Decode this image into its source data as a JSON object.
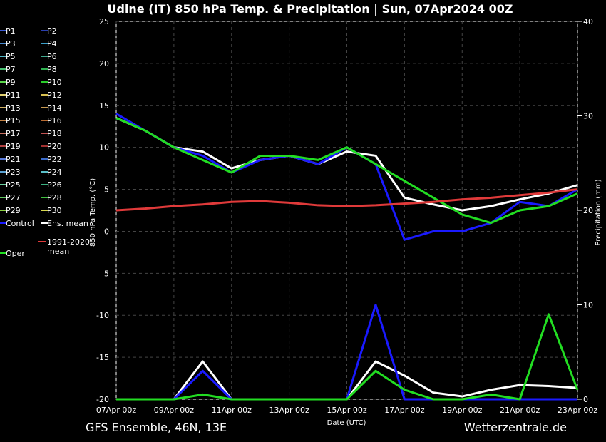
{
  "chart_data": {
    "type": "line",
    "title": "Udine  (IT)  850 hPa Temp. & Precipitation | Sun, 07Apr2024 00Z",
    "xlabel": "Date (UTC)",
    "ylabel": "850 hPa Temp. (°C)",
    "y2label": "Precipitation (mm)",
    "ylim": [
      -20,
      25
    ],
    "y2lim": [
      0,
      40
    ],
    "yticks": [
      "25",
      "20",
      "15",
      "10",
      "5",
      "0",
      "-5",
      "-10",
      "-15",
      "-20"
    ],
    "y2ticks": [
      "40",
      "30",
      "20",
      "10",
      "0"
    ],
    "xticks": [
      "07Apr 00z",
      "09Apr 00z",
      "11Apr 00z",
      "13Apr 00z",
      "15Apr 00z",
      "17Apr 00z",
      "19Apr 00z",
      "21Apr 00z",
      "23Apr 00z"
    ],
    "footer_left": "GFS Ensemble, 46N, 13E",
    "footer_right": "Wetterzentrale.de",
    "grid": true,
    "legend_position": "left",
    "legend": [
      {
        "label": "P1",
        "color": "#3b5bd6"
      },
      {
        "label": "P2",
        "color": "#2a3fb0"
      },
      {
        "label": "P3",
        "color": "#4a8ad0"
      },
      {
        "label": "P4",
        "color": "#3a9ec8"
      },
      {
        "label": "P5",
        "color": "#4fb6c4"
      },
      {
        "label": "P6",
        "color": "#3fa88c"
      },
      {
        "label": "P7",
        "color": "#48c070"
      },
      {
        "label": "P8",
        "color": "#2fb050"
      },
      {
        "label": "P9",
        "color": "#5ad44a"
      },
      {
        "label": "P10",
        "color": "#2acd2a"
      },
      {
        "label": "P11",
        "color": "#e0d070"
      },
      {
        "label": "P12",
        "color": "#d8c050"
      },
      {
        "label": "P13",
        "color": "#d0b060"
      },
      {
        "label": "P14",
        "color": "#c89a50"
      },
      {
        "label": "P15",
        "color": "#c48040"
      },
      {
        "label": "P16",
        "color": "#b86a30"
      },
      {
        "label": "P17",
        "color": "#c87060"
      },
      {
        "label": "P18",
        "color": "#c05050"
      },
      {
        "label": "P19",
        "color": "#b04040"
      },
      {
        "label": "P20",
        "color": "#a03030"
      },
      {
        "label": "P21",
        "color": "#5a7ad8"
      },
      {
        "label": "P22",
        "color": "#3a6ac8"
      },
      {
        "label": "P23",
        "color": "#5aa0d0"
      },
      {
        "label": "P24",
        "color": "#5ac0c8"
      },
      {
        "label": "P25",
        "color": "#6ad0a0"
      },
      {
        "label": "P26",
        "color": "#3ab080"
      },
      {
        "label": "P27",
        "color": "#60c860"
      },
      {
        "label": "P28",
        "color": "#40c040"
      },
      {
        "label": "P29",
        "color": "#8ad040"
      },
      {
        "label": "P30",
        "color": "#d8d850"
      },
      {
        "label": "Control",
        "color": "#1a1aff"
      },
      {
        "label": "Ens. mean",
        "color": "#ffffff"
      },
      {
        "label": "1991-2020 mean",
        "color": "#e03a3a"
      },
      {
        "label": "Oper",
        "color": "#22dd22"
      }
    ],
    "x_days": [
      0,
      1,
      2,
      3,
      4,
      5,
      6,
      7,
      8,
      9,
      10,
      11,
      12,
      13,
      14,
      15,
      16
    ],
    "series": [
      {
        "name": "Ens. mean",
        "role": "temp",
        "color": "#ffffff",
        "values": [
          13.5,
          12,
          10,
          9.5,
          7.5,
          8.5,
          9,
          8,
          9.5,
          9,
          4,
          3.2,
          2.5,
          3,
          3.8,
          4.5,
          5.5
        ]
      },
      {
        "name": "Control",
        "role": "temp",
        "color": "#1a1aff",
        "values": [
          14,
          12,
          10,
          9,
          7,
          8.5,
          9,
          8,
          10,
          8,
          -1,
          0,
          0,
          1,
          3.5,
          3,
          5
        ]
      },
      {
        "name": "Oper",
        "role": "temp",
        "color": "#22dd22",
        "values": [
          13.5,
          12,
          10,
          8.5,
          7,
          9,
          9,
          8.5,
          10,
          8,
          6,
          4,
          2,
          1,
          2.5,
          3,
          4.5
        ]
      },
      {
        "name": "1991-2020 mean",
        "role": "temp",
        "color": "#e03a3a",
        "values": [
          2.5,
          2.7,
          3,
          3.2,
          3.5,
          3.6,
          3.4,
          3.1,
          3,
          3.1,
          3.3,
          3.5,
          3.8,
          4,
          4.3,
          4.6,
          5
        ]
      },
      {
        "name": "Ens. mean",
        "role": "precip",
        "color": "#ffffff",
        "values": [
          0,
          0,
          0,
          4,
          0,
          0,
          0,
          0,
          0,
          4,
          2.5,
          0.7,
          0.3,
          1,
          1.5,
          1.4,
          1.2
        ]
      },
      {
        "name": "Control",
        "role": "precip",
        "color": "#1a1aff",
        "values": [
          0,
          0,
          0,
          3,
          0,
          0,
          0,
          0,
          0,
          10,
          0,
          0,
          0,
          0,
          0,
          0,
          0
        ]
      },
      {
        "name": "Oper",
        "role": "precip",
        "color": "#22dd22",
        "values": [
          0,
          0,
          0,
          0.5,
          0,
          0,
          0,
          0,
          0,
          3,
          1,
          0,
          0,
          0.5,
          0,
          9,
          1
        ]
      }
    ]
  }
}
